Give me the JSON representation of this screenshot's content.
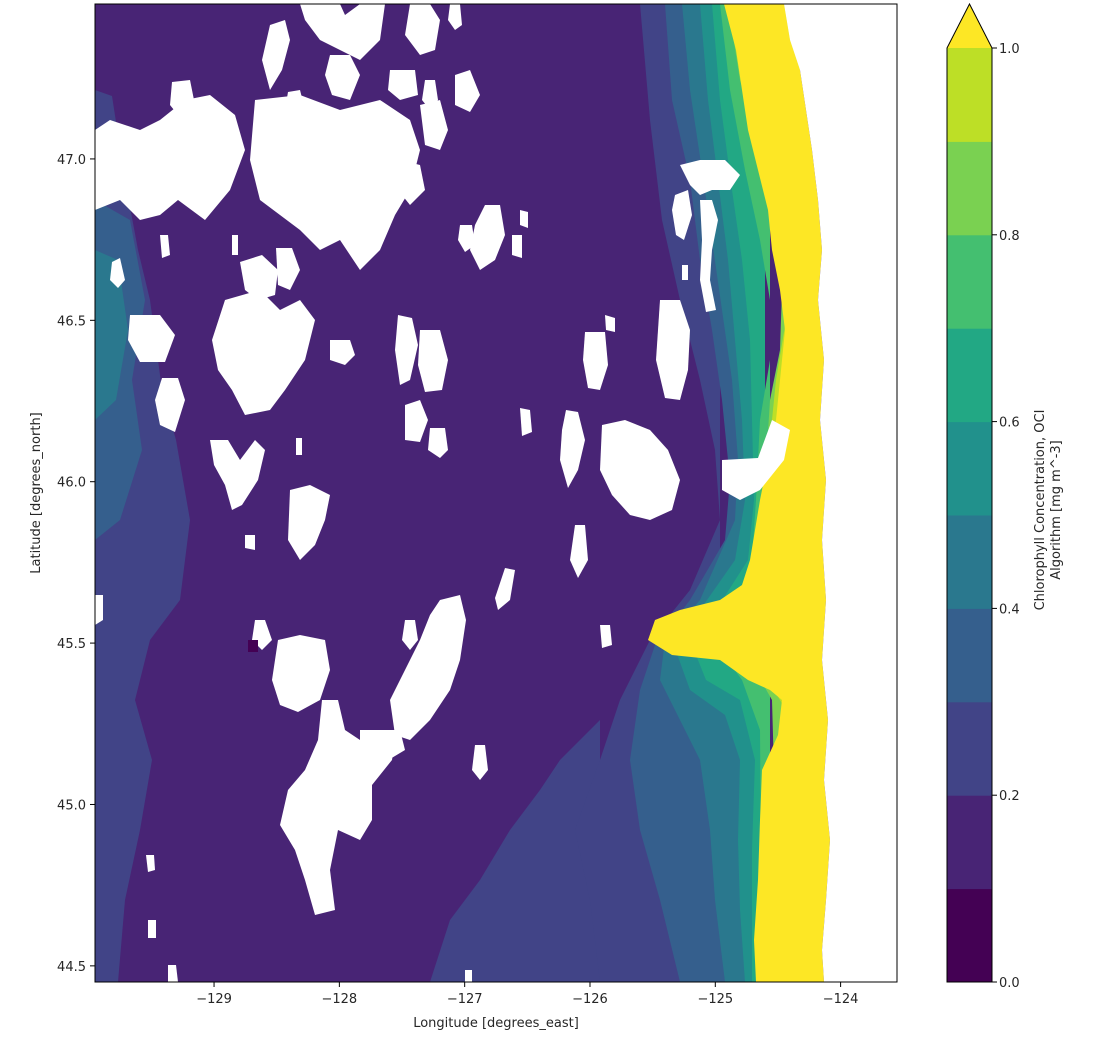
{
  "chart_data": {
    "type": "heatmap",
    "title": "",
    "xlabel": "Longitude [degrees_east]",
    "ylabel": "Latitude [degrees_north]",
    "xlim": [
      -129.95,
      -123.55
    ],
    "ylim": [
      44.45,
      47.48
    ],
    "x_ticks": [
      -129,
      -128,
      -127,
      -126,
      -125,
      -124
    ],
    "x_tick_labels": [
      "−129",
      "−128",
      "−127",
      "−126",
      "−125",
      "−124"
    ],
    "y_ticks": [
      44.5,
      45.0,
      45.5,
      46.0,
      46.5,
      47.0
    ],
    "y_tick_labels": [
      "44.5",
      "45.0",
      "45.5",
      "46.0",
      "46.5",
      "47.0"
    ],
    "grid": false,
    "colorbar": {
      "label_line1": "Chlorophyll Concentration, OCI",
      "label_line2": "Algorithm [mg m^-3]",
      "levels": [
        0.0,
        0.1,
        0.2,
        0.3,
        0.4,
        0.5,
        0.6,
        0.7,
        0.8,
        0.9,
        1.0
      ],
      "colors": [
        "#440154",
        "#482475",
        "#414487",
        "#355f8d",
        "#2a788e",
        "#21918c",
        "#22a884",
        "#44bf70",
        "#7ad151",
        "#bddf26"
      ],
      "extend_max_color": "#fde725",
      "ticks": [
        0.0,
        0.2,
        0.4,
        0.6,
        0.8,
        1.0
      ],
      "tick_labels": [
        "0.0",
        "0.2",
        "0.4",
        "0.6",
        "0.8",
        "1.0"
      ],
      "extend": "max"
    },
    "colormap": "viridis",
    "missing_color": "#ffffff"
  }
}
